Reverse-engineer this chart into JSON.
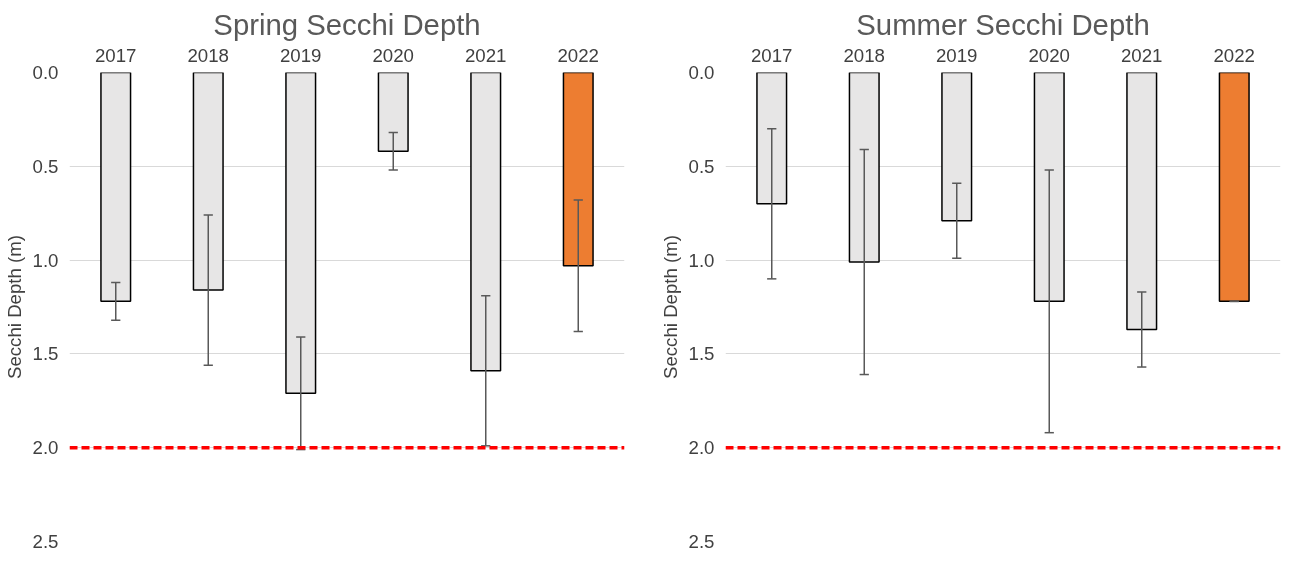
{
  "chart_data": [
    {
      "type": "bar",
      "title": "Spring Secchi Depth",
      "ylabel": "Secchi Depth (m)",
      "categories": [
        "2017",
        "2018",
        "2019",
        "2020",
        "2021",
        "2022"
      ],
      "values": [
        1.22,
        1.16,
        1.71,
        0.42,
        1.59,
        1.03
      ],
      "errors": [
        0.1,
        0.4,
        0.3,
        0.1,
        0.4,
        0.35
      ],
      "colors": [
        "#e7e6e6",
        "#e7e6e6",
        "#e7e6e6",
        "#e7e6e6",
        "#e7e6e6",
        "#ed7d31"
      ],
      "ylim": [
        2.5,
        0.0
      ],
      "yticks": [
        {
          "value": 0,
          "label": "0.0"
        },
        0.5,
        {
          "value": 1,
          "label": "1.0"
        },
        1.5,
        {
          "value": 2,
          "label": "2.0"
        },
        2.5
      ],
      "grid": "y",
      "ref_lines": [
        {
          "axis": "y",
          "value": 2.0,
          "color": "#ff0000",
          "line_style": "dashed"
        }
      ]
    },
    {
      "type": "bar",
      "title": "Summer Secchi Depth",
      "ylabel": "Secchi Depth (m)",
      "categories": [
        "2017",
        "2018",
        "2019",
        "2020",
        "2021",
        "2022"
      ],
      "values": [
        0.7,
        1.01,
        0.79,
        1.22,
        1.37,
        1.22
      ],
      "errors": [
        0.4,
        0.6,
        0.2,
        0.7,
        0.2,
        0.0
      ],
      "colors": [
        "#e7e6e6",
        "#e7e6e6",
        "#e7e6e6",
        "#e7e6e6",
        "#e7e6e6",
        "#ed7d31"
      ],
      "ylim": [
        2.5,
        0.0
      ],
      "yticks": [
        {
          "value": 0,
          "label": "0.0"
        },
        0.5,
        {
          "value": 1,
          "label": "1.0"
        },
        1.5,
        {
          "value": 2,
          "label": "2.0"
        },
        2.5
      ],
      "grid": "y",
      "ref_lines": [
        {
          "axis": "y",
          "value": 2.0,
          "color": "#ff0000",
          "line_style": "dashed"
        }
      ]
    }
  ]
}
